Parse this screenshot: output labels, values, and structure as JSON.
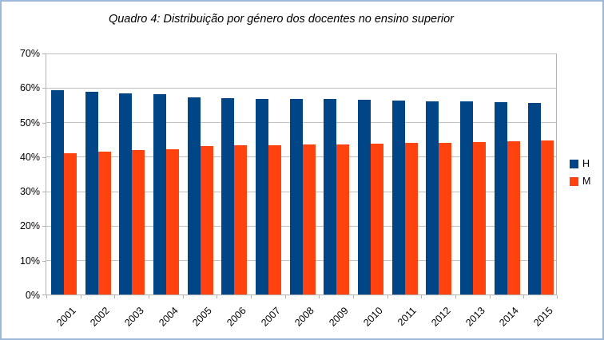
{
  "window": {
    "background": "#ffffff",
    "border_color": "#9db8d8"
  },
  "chart_data": {
    "type": "bar",
    "title": "Quadro 4: Distribuição por género dos docentes no ensino superior",
    "categories": [
      "2001",
      "2002",
      "2003",
      "2004",
      "2005",
      "2006",
      "2007",
      "2008",
      "2009",
      "2010",
      "2011",
      "2012",
      "2013",
      "2014",
      "2015"
    ],
    "series": [
      {
        "name": "H",
        "color": "#004586",
        "values": [
          59.1,
          58.7,
          58.2,
          58.0,
          57.0,
          56.8,
          56.7,
          56.6,
          56.5,
          56.4,
          56.2,
          56.0,
          55.9,
          55.7,
          55.5
        ]
      },
      {
        "name": "M",
        "color": "#FF420E",
        "values": [
          40.9,
          41.3,
          41.8,
          42.0,
          43.0,
          43.2,
          43.3,
          43.4,
          43.5,
          43.6,
          43.8,
          44.0,
          44.1,
          44.3,
          44.5
        ]
      }
    ],
    "ylim": [
      0,
      70
    ],
    "ytick_step": 10,
    "ytick_labels": [
      "70%",
      "60%",
      "50%",
      "40%",
      "30%",
      "20%",
      "10%",
      "0%"
    ],
    "yaxis_format": "percent",
    "grid": "horizontal",
    "gridline_color": "#c0c0c0",
    "axis_color": "#b3b3b3",
    "legend_position": "right",
    "x_label_rotation": -45
  }
}
